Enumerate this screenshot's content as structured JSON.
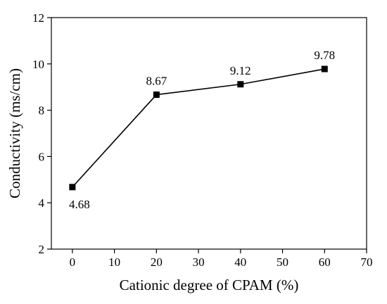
{
  "chart_data": {
    "type": "line",
    "xlabel": "Cationic degree of CPAM (%)",
    "ylabel": "Conductivity (ms/cm)",
    "xlim": [
      -5,
      70
    ],
    "ylim": [
      2,
      12
    ],
    "x_ticks": [
      0,
      10,
      20,
      30,
      40,
      50,
      60,
      70
    ],
    "y_ticks": [
      2,
      4,
      6,
      8,
      10,
      12
    ],
    "grid": false,
    "series": [
      {
        "x": [
          0,
          20,
          40,
          60
        ],
        "values": [
          4.68,
          8.67,
          9.12,
          9.78
        ],
        "labels": [
          "4.68",
          "8.67",
          "9.12",
          "9.78"
        ],
        "marker": "square",
        "color": "#000000"
      }
    ]
  }
}
